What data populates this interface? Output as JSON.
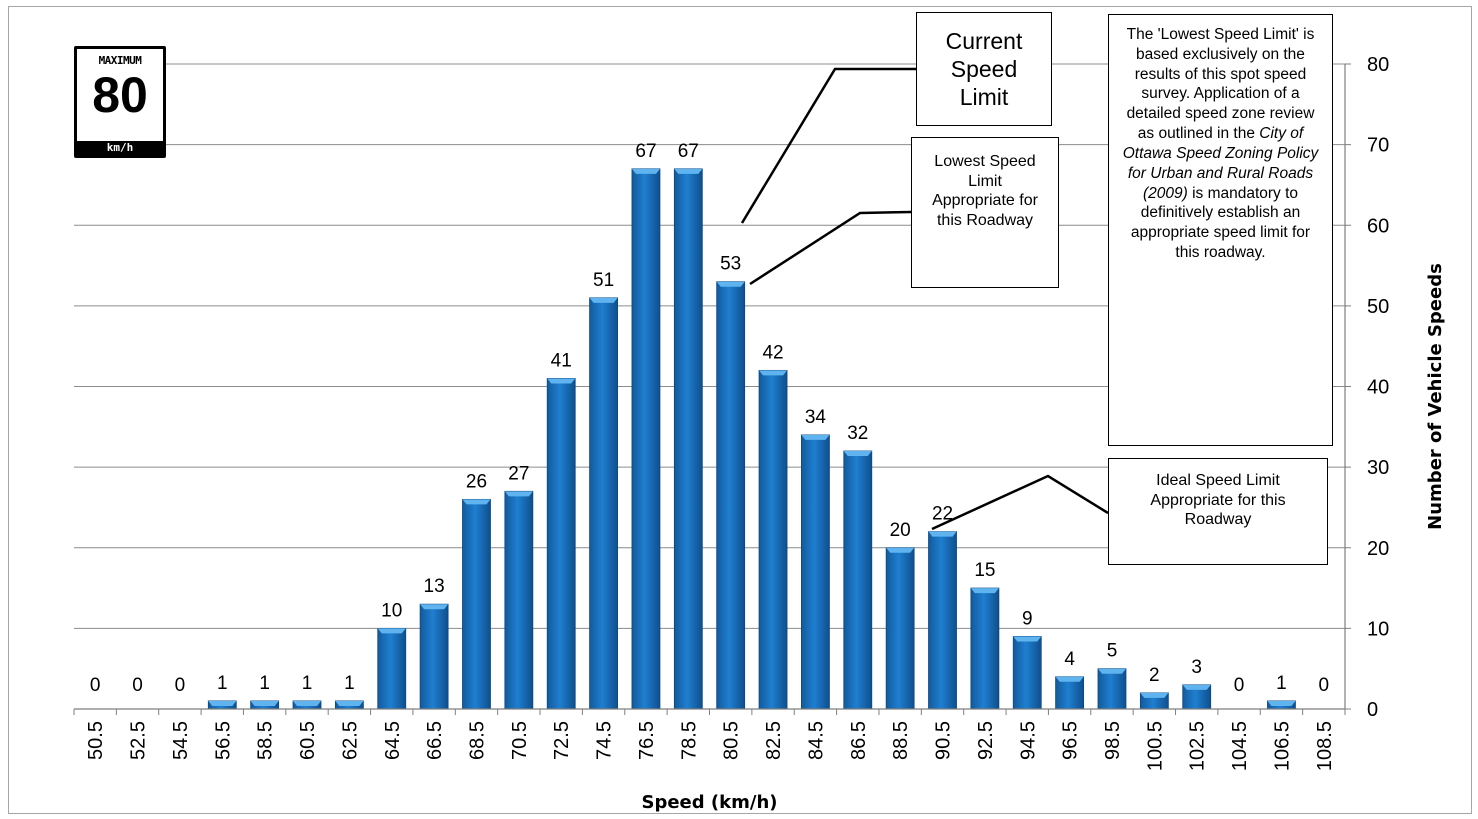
{
  "sign": {
    "top": "MAXIMUM",
    "number": "80",
    "unit": "km/h"
  },
  "callouts": {
    "current": "Current Speed Limit",
    "lowest": "Lowest Speed Limit Appropriate for this Roadway",
    "ideal": "Ideal Speed Limit Appropriate for this Roadway",
    "note_parts": [
      {
        "text": "The 'Lowest Speed Limit' is based exclusively on the results of this spot speed survey. Application of a detailed speed zone review as outlined in the ",
        "italic": false
      },
      {
        "text": "City of Ottawa Speed Zoning Policy for Urban and Rural Roads (2009)",
        "italic": true
      },
      {
        "text": " is mandatory to definitively establish an appropriate speed limit for this roadway.",
        "italic": false
      }
    ]
  },
  "colors": {
    "bar": "#1f7fd0",
    "bar_top": "#5fb4ef",
    "grid": "#8c8c8c"
  },
  "chart_data": {
    "type": "bar",
    "categories": [
      "50.5",
      "52.5",
      "54.5",
      "56.5",
      "58.5",
      "60.5",
      "62.5",
      "64.5",
      "66.5",
      "68.5",
      "70.5",
      "72.5",
      "74.5",
      "76.5",
      "78.5",
      "80.5",
      "82.5",
      "84.5",
      "86.5",
      "88.5",
      "90.5",
      "92.5",
      "94.5",
      "96.5",
      "98.5",
      "100.5",
      "102.5",
      "104.5",
      "106.5",
      "108.5"
    ],
    "values": [
      0,
      0,
      0,
      1,
      1,
      1,
      1,
      10,
      13,
      26,
      27,
      41,
      51,
      67,
      67,
      53,
      42,
      34,
      32,
      20,
      22,
      15,
      9,
      4,
      5,
      2,
      3,
      0,
      1,
      0
    ],
    "xlabel": "Speed (km/h)",
    "ylabel": "Number of Vehicle Speeds",
    "ylim": [
      0,
      80
    ],
    "yticks": [
      0,
      10,
      20,
      30,
      40,
      50,
      60,
      70,
      80
    ],
    "grid": true,
    "y_axis_side": "right"
  }
}
